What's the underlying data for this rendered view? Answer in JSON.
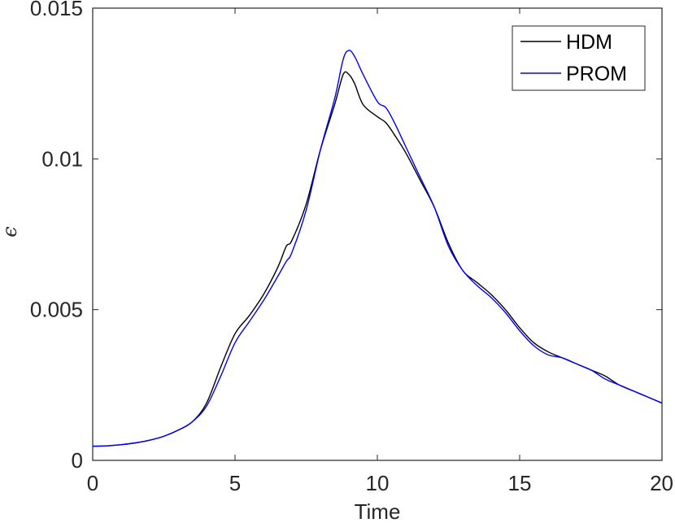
{
  "chart_data": {
    "type": "line",
    "title": "",
    "xlabel": "Time",
    "ylabel": "ϵ",
    "xlim": [
      0,
      20
    ],
    "ylim": [
      0,
      0.015
    ],
    "xticks": [
      0,
      5,
      10,
      15,
      20
    ],
    "xtick_labels": [
      "0",
      "5",
      "10",
      "15",
      "20"
    ],
    "yticks": [
      0,
      0.005,
      0.01,
      0.015
    ],
    "ytick_labels": [
      "0",
      "0.005",
      "0.01",
      "0.015"
    ],
    "grid": false,
    "legend_position": "top-right",
    "series": [
      {
        "name": "HDM",
        "color": "#000000",
        "x": [
          0,
          0.5,
          1,
          1.5,
          2,
          2.5,
          3,
          3.5,
          4,
          4.5,
          5,
          5.5,
          6,
          6.5,
          6.8,
          7,
          7.5,
          8,
          8.5,
          8.8,
          9,
          9.2,
          9.5,
          10,
          10.3,
          10.6,
          11,
          11.5,
          12,
          12.5,
          13,
          13.5,
          14,
          14.5,
          15,
          15.5,
          16,
          16.5,
          17,
          17.5,
          18,
          18.5,
          19,
          19.5,
          20
        ],
        "y": [
          0.00047,
          0.00048,
          0.00052,
          0.00058,
          0.00067,
          0.0008,
          0.001,
          0.00128,
          0.0019,
          0.0031,
          0.0042,
          0.0048,
          0.0055,
          0.0064,
          0.0071,
          0.0073,
          0.0085,
          0.0103,
          0.0118,
          0.0128,
          0.0128,
          0.0125,
          0.0118,
          0.0114,
          0.0112,
          0.0108,
          0.0102,
          0.0093,
          0.0084,
          0.0072,
          0.0063,
          0.0059,
          0.0055,
          0.005,
          0.0044,
          0.0039,
          0.0036,
          0.0034,
          0.0032,
          0.003,
          0.0028,
          0.0025,
          0.0023,
          0.0021,
          0.0019
        ]
      },
      {
        "name": "PROM",
        "color": "#0000ff",
        "x": [
          0,
          0.5,
          1,
          1.5,
          2,
          2.5,
          3,
          3.5,
          4,
          4.5,
          5,
          5.5,
          6,
          6.5,
          6.8,
          7,
          7.5,
          8,
          8.5,
          8.8,
          9,
          9.2,
          9.5,
          10,
          10.3,
          10.6,
          11,
          11.5,
          12,
          12.5,
          13,
          13.5,
          14,
          14.5,
          15,
          15.5,
          16,
          16.5,
          17,
          17.5,
          18,
          18.5,
          19,
          19.5,
          20
        ],
        "y": [
          0.00047,
          0.00048,
          0.00052,
          0.00058,
          0.00067,
          0.0008,
          0.001,
          0.00128,
          0.0018,
          0.0028,
          0.0039,
          0.0046,
          0.0053,
          0.0061,
          0.0066,
          0.0069,
          0.0083,
          0.0103,
          0.012,
          0.0133,
          0.0136,
          0.0134,
          0.0128,
          0.0119,
          0.0117,
          0.0112,
          0.0104,
          0.0094,
          0.0084,
          0.0071,
          0.0063,
          0.0058,
          0.0054,
          0.0049,
          0.0043,
          0.0038,
          0.0035,
          0.0034,
          0.0032,
          0.003,
          0.0027,
          0.0025,
          0.0023,
          0.0021,
          0.0019
        ]
      }
    ]
  }
}
